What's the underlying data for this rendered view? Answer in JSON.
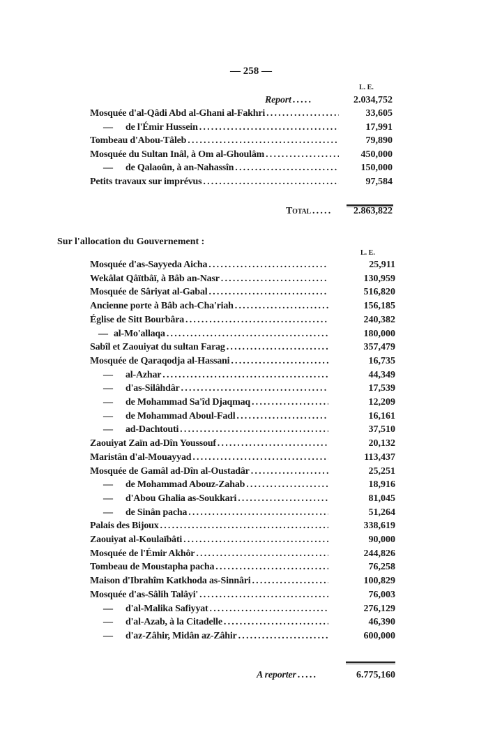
{
  "page_number": "— 258 —",
  "currency_label": "L. E.",
  "block1": {
    "report_label": "Report",
    "report_amount": "2.034,752",
    "rows": [
      {
        "dash": false,
        "label": "Mosquée d'al-Qâdi Abd al-Ghani al-Fakhri",
        "amount": "33,605"
      },
      {
        "dash": true,
        "label": "de l'Émir Hussein",
        "amount": "17,991"
      },
      {
        "dash": false,
        "label": "Tombeau d'Abou-Tâleb",
        "amount": "79,890"
      },
      {
        "dash": false,
        "label": "Mosquée du Sultan Inâl, à Om al-Ghoulâm",
        "amount": "450,000"
      },
      {
        "dash": true,
        "label": "de Qalaoûn, à an-Nahassîn",
        "amount": "150,000"
      },
      {
        "dash": false,
        "label": "Petits travaux sur imprévus",
        "amount": "97,584"
      }
    ],
    "total_label": "Total",
    "total_amount": "2.863,822"
  },
  "block2": {
    "heading": "Sur l'allocation du Gouvernement :",
    "rows": [
      {
        "dash": false,
        "label": "Mosquée d'as-Sayyeda Aicha",
        "amount": "25,911"
      },
      {
        "dash": false,
        "label": "Wekâlat Qâïtbâï, à Bâb an-Nasr",
        "amount": "130,959"
      },
      {
        "dash": false,
        "label": "Mosquée de Sâriyat al-Gabal",
        "amount": "516,820"
      },
      {
        "dash": false,
        "label": "Ancienne porte à Bâb ach-Cha'riah",
        "amount": "156,185"
      },
      {
        "dash": false,
        "label": "Église de Sitt Bourbâra",
        "amount": "240,382"
      },
      {
        "dash": "short",
        "label": "al-Mo'allaqa",
        "amount": "180,000"
      },
      {
        "dash": false,
        "label": "Sabîl et Zaouiyat du sultan Farag",
        "amount": "357,479"
      },
      {
        "dash": false,
        "label": "Mosquée de Qaraqodja al-Hassani",
        "amount": "16,735"
      },
      {
        "dash": true,
        "label": "al-Azhar",
        "amount": "44,349"
      },
      {
        "dash": true,
        "label": "d'as-Silâhdâr",
        "amount": "17,539"
      },
      {
        "dash": true,
        "label": "de Mohammad Sa'îd Djaqmaq",
        "amount": "12,209"
      },
      {
        "dash": true,
        "label": "de Mohammad Aboul-Fadl",
        "amount": "16,161"
      },
      {
        "dash": true,
        "label": "ad-Dachtouti",
        "amount": "37,510"
      },
      {
        "dash": false,
        "label": "Zaouiyat Zaïn ad-Dîn Youssouf",
        "amount": "20,132"
      },
      {
        "dash": false,
        "label": "Maristân d'al-Mouayyad",
        "amount": "113,437"
      },
      {
        "dash": false,
        "label": "Mosquée de Gamâl ad-Dîn al-Oustadâr",
        "amount": "25,251"
      },
      {
        "dash": true,
        "label": "de Mohammad Abouz-Zahab",
        "amount": "18,916"
      },
      {
        "dash": true,
        "label": "d'Abou Ghalia as-Soukkari",
        "amount": "81,045"
      },
      {
        "dash": true,
        "label": "de Sinân pacha",
        "amount": "51,264"
      },
      {
        "dash": false,
        "label": "Palais des Bijoux",
        "amount": "338,619"
      },
      {
        "dash": false,
        "label": "Zaouiyat al-Koulaïbâti",
        "amount": "90,000"
      },
      {
        "dash": false,
        "label": "Mosquée de l'Émir Akhôr",
        "amount": "244,826"
      },
      {
        "dash": false,
        "label": "Tombeau de Moustapha pacha",
        "amount": "76,258"
      },
      {
        "dash": false,
        "label": "Maison d'Ibrahîm Katkhoda as-Sinnâri",
        "amount": "100,829"
      },
      {
        "dash": false,
        "label": "Mosquée d'as-Sâlih Talâyi'",
        "amount": "76,003"
      },
      {
        "dash": true,
        "label": "d'al-Malika Safiyyat",
        "amount": "276,129"
      },
      {
        "dash": true,
        "label": "d'al-Azab, à la Citadelle",
        "amount": "46,390"
      },
      {
        "dash": true,
        "label": "d'az-Zâhir, Midân az-Zâhir",
        "amount": "600,000"
      }
    ],
    "carry_label": "A reporter",
    "carry_amount": "6.775,160"
  }
}
